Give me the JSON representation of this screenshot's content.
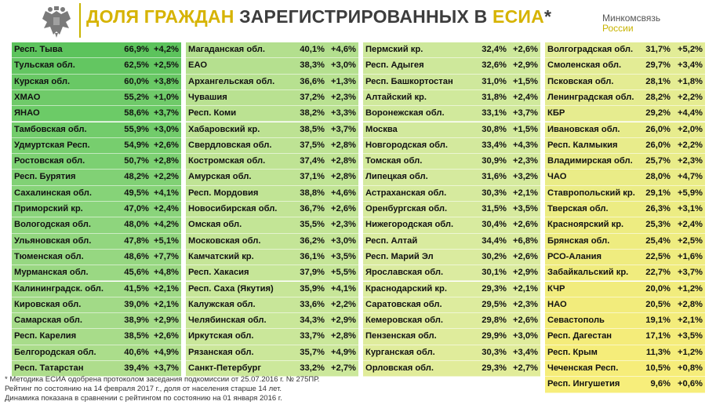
{
  "header": {
    "title_part1": "ДОЛЯ ГРАЖДАН",
    "title_part2": "ЗАРЕГИСТРИРОВАННЫХ В",
    "title_part3": "ЕСИА",
    "title_mark": "*",
    "ministry_line1": "Минкомсвязь",
    "ministry_line2": "России",
    "emblem_icon": "russian-coat-of-arms-icon"
  },
  "columns": [
    {
      "rows": [
        {
          "name": "Респ. Тыва",
          "pct": "66,9%",
          "dyn": "+4,2%",
          "color": "#5cc35c"
        },
        {
          "name": "Тульская обл.",
          "pct": "62,5%",
          "dyn": "+2,5%",
          "color": "#63c661"
        },
        {
          "name": "Курская обл.",
          "pct": "60,0%",
          "dyn": "+3,8%",
          "color": "#69c865"
        },
        {
          "name": "ХМАО",
          "pct": "55,2%",
          "dyn": "+1,0%",
          "color": "#6fca69"
        },
        {
          "name": "ЯНАО",
          "pct": "58,6%",
          "dyn": "+3,7%",
          "color": "#6ccb67"
        },
        {
          "name": "Тамбовская обл.",
          "pct": "55,9%",
          "dyn": "+3,0%",
          "color": "#72cc6b"
        },
        {
          "name": "Удмуртская Респ.",
          "pct": "54,9%",
          "dyn": "+2,6%",
          "color": "#77ce6e"
        },
        {
          "name": "Ростовская обл.",
          "pct": "50,7%",
          "dyn": "+2,8%",
          "color": "#7cd072"
        },
        {
          "name": "Респ. Бурятия",
          "pct": "48,2%",
          "dyn": "+2,2%",
          "color": "#81d175"
        },
        {
          "name": "Сахалинская обл.",
          "pct": "49,5%",
          "dyn": "+4,1%",
          "color": "#86d378"
        },
        {
          "name": "Приморский кр.",
          "pct": "47,0%",
          "dyn": "+2,4%",
          "color": "#8ad47b"
        },
        {
          "name": "Вологодская обл.",
          "pct": "48,0%",
          "dyn": "+4,2%",
          "color": "#8ed57d"
        },
        {
          "name": "Ульяновская обл.",
          "pct": "47,8%",
          "dyn": "+5,1%",
          "color": "#92d67f"
        },
        {
          "name": "Тюменская обл.",
          "pct": "48,6%",
          "dyn": "+7,7%",
          "color": "#96d781"
        },
        {
          "name": "Мурманская обл.",
          "pct": "45,6%",
          "dyn": "+4,8%",
          "color": "#9ad883"
        },
        {
          "name": "Калининградск. обл.",
          "pct": "41,5%",
          "dyn": "+2,1%",
          "color": "#9ed985"
        },
        {
          "name": "Кировская обл.",
          "pct": "39,0%",
          "dyn": "+2,1%",
          "color": "#a2da87"
        },
        {
          "name": "Самарская обл.",
          "pct": "38,9%",
          "dyn": "+2,9%",
          "color": "#a5db89"
        },
        {
          "name": "Респ. Карелия",
          "pct": "38,5%",
          "dyn": "+2,6%",
          "color": "#a8dc8a"
        },
        {
          "name": "Белгородская обл.",
          "pct": "40,6%",
          "dyn": "+4,9%",
          "color": "#abdd8b"
        },
        {
          "name": "Респ. Татарстан",
          "pct": "39,4%",
          "dyn": "+3,7%",
          "color": "#aedd8c"
        }
      ]
    },
    {
      "rows": [
        {
          "name": "Магаданская обл.",
          "pct": "40,1%",
          "dyn": "+4,6%",
          "color": "#b3df8e"
        },
        {
          "name": "ЕАО",
          "pct": "38,3%",
          "dyn": "+3,0%",
          "color": "#b5e08f"
        },
        {
          "name": "Архангельская обл.",
          "pct": "36,6%",
          "dyn": "+1,3%",
          "color": "#b7e190"
        },
        {
          "name": "Чувашия",
          "pct": "37,2%",
          "dyn": "+2,3%",
          "color": "#b9e191"
        },
        {
          "name": "Респ. Коми",
          "pct": "38,2%",
          "dyn": "+3,3%",
          "color": "#bbe292"
        },
        {
          "name": "Хабаровский кр.",
          "pct": "38,5%",
          "dyn": "+3,7%",
          "color": "#bde293"
        },
        {
          "name": "Свердловская обл.",
          "pct": "37,5%",
          "dyn": "+2,8%",
          "color": "#bee394"
        },
        {
          "name": "Костромская обл.",
          "pct": "37,4%",
          "dyn": "+2,8%",
          "color": "#bfe394"
        },
        {
          "name": "Амурская обл.",
          "pct": "37,1%",
          "dyn": "+2,8%",
          "color": "#c0e495"
        },
        {
          "name": "Респ. Мордовия",
          "pct": "38,8%",
          "dyn": "+4,6%",
          "color": "#c1e495"
        },
        {
          "name": "Новосибирская обл.",
          "pct": "36,7%",
          "dyn": "+2,6%",
          "color": "#c2e496"
        },
        {
          "name": "Омская обл.",
          "pct": "35,5%",
          "dyn": "+2,3%",
          "color": "#c3e596"
        },
        {
          "name": "Московская обл.",
          "pct": "36,2%",
          "dyn": "+3,0%",
          "color": "#c4e597"
        },
        {
          "name": "Камчатский кр.",
          "pct": "36,1%",
          "dyn": "+3,5%",
          "color": "#c5e597"
        },
        {
          "name": "Респ. Хакасия",
          "pct": "37,9%",
          "dyn": "+5,5%",
          "color": "#c6e698"
        },
        {
          "name": "Респ. Саха (Якутия)",
          "pct": "35,9%",
          "dyn": "+4,1%",
          "color": "#c7e698"
        },
        {
          "name": "Калужская обл.",
          "pct": "33,6%",
          "dyn": "+2,2%",
          "color": "#c8e699"
        },
        {
          "name": "Челябинская обл.",
          "pct": "34,3%",
          "dyn": "+2,9%",
          "color": "#c9e799"
        },
        {
          "name": "Иркутская обл.",
          "pct": "33,7%",
          "dyn": "+2,8%",
          "color": "#cae79a"
        },
        {
          "name": "Рязанская обл.",
          "pct": "35,7%",
          "dyn": "+4,9%",
          "color": "#cbe79a"
        },
        {
          "name": "Санкт-Петербург",
          "pct": "33,2%",
          "dyn": "+2,7%",
          "color": "#cce89b"
        }
      ]
    },
    {
      "rows": [
        {
          "name": "Пермский кр.",
          "pct": "32,4%",
          "dyn": "+2,6%",
          "color": "#cde89b"
        },
        {
          "name": "Респ. Адыгея",
          "pct": "32,6%",
          "dyn": "+2,9%",
          "color": "#cee89b"
        },
        {
          "name": "Респ. Башкортостан",
          "pct": "31,0%",
          "dyn": "+1,5%",
          "color": "#cfe89c"
        },
        {
          "name": "Алтайский кр.",
          "pct": "31,8%",
          "dyn": "+2,4%",
          "color": "#d0e99c"
        },
        {
          "name": "Воронежская обл.",
          "pct": "33,1%",
          "dyn": "+3,7%",
          "color": "#d1e99c"
        },
        {
          "name": "Москва",
          "pct": "30,8%",
          "dyn": "+1,5%",
          "color": "#d2e99d"
        },
        {
          "name": "Новгородская обл.",
          "pct": "33,4%",
          "dyn": "+4,3%",
          "color": "#d3e99d"
        },
        {
          "name": "Томская обл.",
          "pct": "30,9%",
          "dyn": "+2,3%",
          "color": "#d4ea9d"
        },
        {
          "name": "Липецкая обл.",
          "pct": "31,6%",
          "dyn": "+3,2%",
          "color": "#d5ea9e"
        },
        {
          "name": "Астраханская обл.",
          "pct": "30,3%",
          "dyn": "+2,1%",
          "color": "#d6ea9e"
        },
        {
          "name": "Оренбургская обл.",
          "pct": "31,5%",
          "dyn": "+3,5%",
          "color": "#d7ea9e"
        },
        {
          "name": "Нижегородская обл.",
          "pct": "30,4%",
          "dyn": "+2,6%",
          "color": "#d8eb9f"
        },
        {
          "name": "Респ. Алтай",
          "pct": "34,4%",
          "dyn": "+6,8%",
          "color": "#d9eb9f"
        },
        {
          "name": "Респ. Марий Эл",
          "pct": "30,2%",
          "dyn": "+2,6%",
          "color": "#daeb9f"
        },
        {
          "name": "Ярославская обл.",
          "pct": "30,1%",
          "dyn": "+2,9%",
          "color": "#dbeba0"
        },
        {
          "name": "Краснодарский кр.",
          "pct": "29,3%",
          "dyn": "+2,1%",
          "color": "#dcec9f"
        },
        {
          "name": "Саратовская обл.",
          "pct": "29,5%",
          "dyn": "+2,3%",
          "color": "#ddec9e"
        },
        {
          "name": "Кемеровская обл.",
          "pct": "29,8%",
          "dyn": "+2,6%",
          "color": "#deec9d"
        },
        {
          "name": "Пензенская обл.",
          "pct": "29,9%",
          "dyn": "+3,0%",
          "color": "#dfec9c"
        },
        {
          "name": "Курганская обл.",
          "pct": "30,3%",
          "dyn": "+3,4%",
          "color": "#e0ec9b"
        },
        {
          "name": "Орловская обл.",
          "pct": "29,3%",
          "dyn": "+2,7%",
          "color": "#e1ec9a"
        }
      ]
    },
    {
      "rows": [
        {
          "name": "Волгоградская обл.",
          "pct": "31,7%",
          "dyn": "+5,2%",
          "color": "#e2ec97"
        },
        {
          "name": "Смоленская обл.",
          "pct": "29,7%",
          "dyn": "+3,4%",
          "color": "#e3ec95"
        },
        {
          "name": "Псковская обл.",
          "pct": "28,1%",
          "dyn": "+1,8%",
          "color": "#e4ec93"
        },
        {
          "name": "Ленинградская обл.",
          "pct": "28,2%",
          "dyn": "+2,2%",
          "color": "#e5ec91"
        },
        {
          "name": "КБР",
          "pct": "29,2%",
          "dyn": "+4,4%",
          "color": "#e6ec8f"
        },
        {
          "name": "Ивановская обл.",
          "pct": "26,0%",
          "dyn": "+2,0%",
          "color": "#e7ec8d"
        },
        {
          "name": "Респ. Калмыкия",
          "pct": "26,0%",
          "dyn": "+2,2%",
          "color": "#e8ec8b"
        },
        {
          "name": "Владимирская обл.",
          "pct": "25,7%",
          "dyn": "+2,3%",
          "color": "#e9ec89"
        },
        {
          "name": "ЧАО",
          "pct": "28,0%",
          "dyn": "+4,7%",
          "color": "#eaec87"
        },
        {
          "name": "Ставропольский кр.",
          "pct": "29,1%",
          "dyn": "+5,9%",
          "color": "#ebec85"
        },
        {
          "name": "Тверская обл.",
          "pct": "26,3%",
          "dyn": "+3,1%",
          "color": "#ecec83"
        },
        {
          "name": "Красноярский кр.",
          "pct": "25,3%",
          "dyn": "+2,4%",
          "color": "#edec81"
        },
        {
          "name": "Брянская обл.",
          "pct": "25,4%",
          "dyn": "+2,5%",
          "color": "#eeec80"
        },
        {
          "name": "РСО-Алания",
          "pct": "22,5%",
          "dyn": "+1,6%",
          "color": "#efec7f"
        },
        {
          "name": "Забайкальский кр.",
          "pct": "22,7%",
          "dyn": "+3,7%",
          "color": "#f0ec7e"
        },
        {
          "name": "КЧР",
          "pct": "20,0%",
          "dyn": "+1,2%",
          "color": "#f1ec7d"
        },
        {
          "name": "НАО",
          "pct": "20,5%",
          "dyn": "+2,8%",
          "color": "#f2ec7c"
        },
        {
          "name": "Севастополь",
          "pct": "19,1%",
          "dyn": "+2,1%",
          "color": "#f3ec7b"
        },
        {
          "name": "Респ. Дагестан",
          "pct": "17,1%",
          "dyn": "+3,5%",
          "color": "#f4ec7a"
        },
        {
          "name": "Респ. Крым",
          "pct": "11,3%",
          "dyn": "+1,2%",
          "color": "#f5ed7a"
        },
        {
          "name": "Чеченская Респ.",
          "pct": "10,5%",
          "dyn": "+0,8%",
          "color": "#f6ed7a"
        },
        {
          "name": "Респ. Ингушетия",
          "pct": "9,6%",
          "dyn": "+0,6%",
          "color": "#f7ee7b"
        }
      ]
    }
  ],
  "footer": {
    "line1": "* Методика ЕСИА одобрена протоколом заседания подкомиссии от 25.07.2016 г. № 275ПР.",
    "line2": "Рейтинг по состоянию на 14 февраля 2017 г., доля от населения старше 14 лет.",
    "line3": "Динамика показана в сравнении с рейтингом по состоянию на 01 января 2016 г."
  }
}
